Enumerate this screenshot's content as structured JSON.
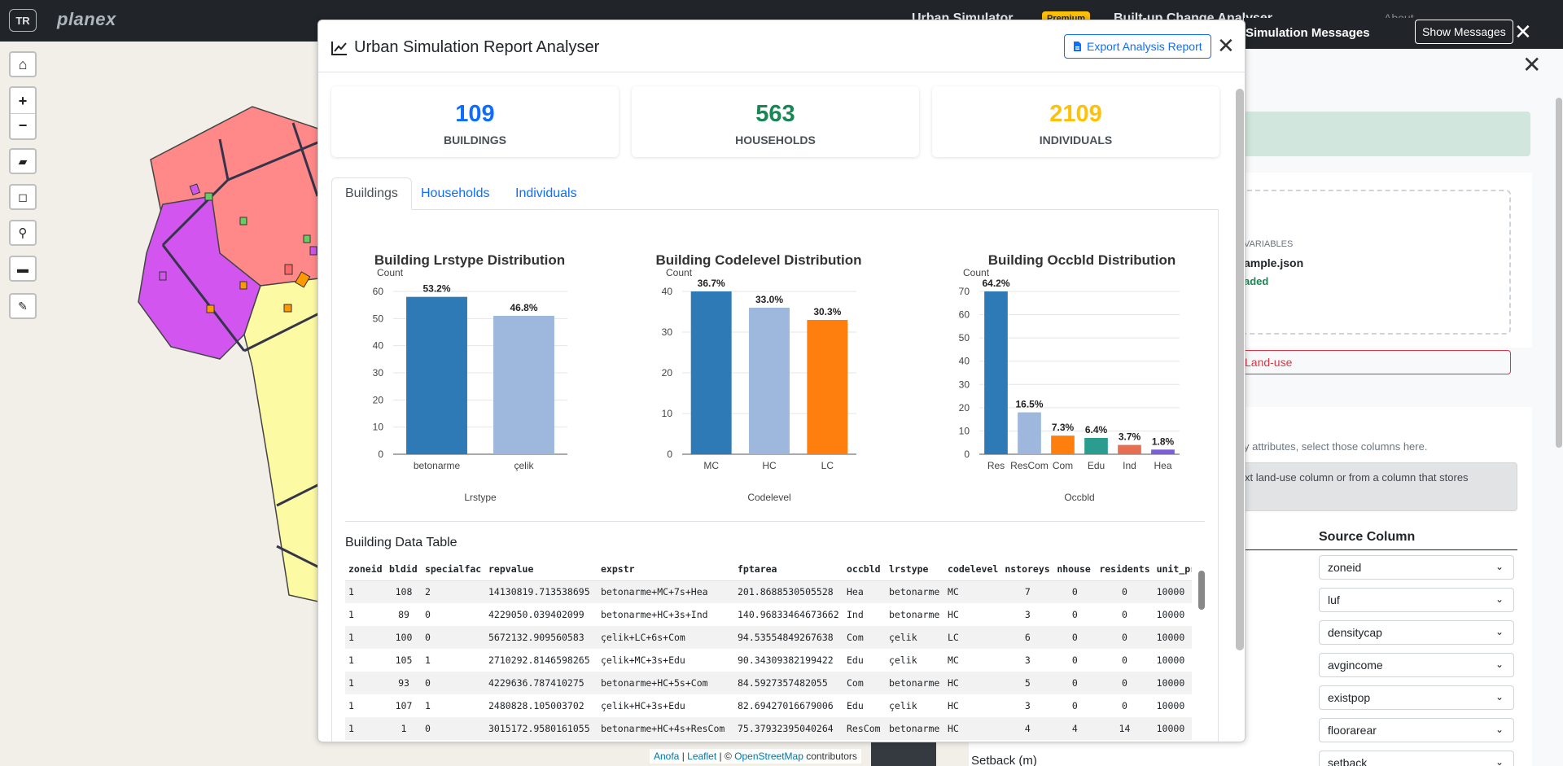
{
  "topbar": {
    "lang": "TR",
    "brand": "planex",
    "nav": {
      "urban_sim": "Urban Simulator",
      "premium": "Premium",
      "builtup": "Built-up Change Analyser",
      "about": "About"
    }
  },
  "map": {
    "controls": [
      "home-icon",
      "zoom-in-icon",
      "zoom-out-icon",
      "layers-icon",
      "draw-rectangle-icon",
      "search-icon",
      "folder-icon",
      "pencil-icon"
    ],
    "zoom_in": "+",
    "zoom_out": "−",
    "attribution": {
      "anofa": "Anofa",
      "sep1": " | ",
      "leaflet": "Leaflet",
      "sep2": " | © ",
      "osm": "OpenStreetMap",
      "suffix": " contributors"
    }
  },
  "side_panel": {
    "header_title": "Simulation Messages",
    "show_messages": "Show Messages",
    "variables_label": "VARIABLES",
    "file_name": "ample.json",
    "file_status": "aded",
    "landuse_button": "Land-use",
    "hint": "y attributes, select those columns here.",
    "info": "xt land-use column or from a column that stores",
    "source_column_header": "Source Column",
    "selects": [
      "zoneid",
      "luf",
      "densitycap",
      "avgincome",
      "existpop",
      "floorarear",
      "setback"
    ],
    "setback_label": "Setback (m)"
  },
  "modal": {
    "title": "Urban Simulation Report Analyser",
    "export_button": "Export Analysis Report",
    "stats": [
      {
        "value": "109",
        "label": "BUILDINGS",
        "color": "#0d6efd"
      },
      {
        "value": "563",
        "label": "HOUSEHOLDS",
        "color": "#198754"
      },
      {
        "value": "2109",
        "label": "INDIVIDUALS",
        "color": "#ffc107"
      }
    ],
    "tabs": [
      "Buildings",
      "Households",
      "Individuals"
    ],
    "active_tab": "Buildings",
    "table_title": "Building Data Table",
    "table": {
      "columns": [
        "zoneid",
        "bldid",
        "specialfac",
        "repvalue",
        "expstr",
        "fptarea",
        "occbld",
        "lrstype",
        "codelevel",
        "nstoreys",
        "nhouse",
        "residents",
        "unit_pr"
      ],
      "rows": [
        [
          "1",
          "108",
          "2",
          "14130819.713538695",
          "betonarme+MC+7s+Hea",
          "201.8688530505528",
          "Hea",
          "betonarme",
          "MC",
          "7",
          "0",
          "0",
          "10000"
        ],
        [
          "1",
          "89",
          "0",
          "4229050.039402099",
          "betonarme+HC+3s+Ind",
          "140.96833464673662",
          "Ind",
          "betonarme",
          "HC",
          "3",
          "0",
          "0",
          "10000"
        ],
        [
          "1",
          "100",
          "0",
          "5672132.909560583",
          "çelik+LC+6s+Com",
          "94.53554849267638",
          "Com",
          "çelik",
          "LC",
          "6",
          "0",
          "0",
          "10000"
        ],
        [
          "1",
          "105",
          "1",
          "2710292.8146598265",
          "çelik+MC+3s+Edu",
          "90.34309382199422",
          "Edu",
          "çelik",
          "MC",
          "3",
          "0",
          "0",
          "10000"
        ],
        [
          "1",
          "93",
          "0",
          "4229636.787410275",
          "betonarme+HC+5s+Com",
          "84.5927357482055",
          "Com",
          "betonarme",
          "HC",
          "5",
          "0",
          "0",
          "10000"
        ],
        [
          "1",
          "107",
          "1",
          "2480828.105003702",
          "çelik+HC+3s+Edu",
          "82.69427016679006",
          "Edu",
          "çelik",
          "HC",
          "3",
          "0",
          "0",
          "10000"
        ],
        [
          "1",
          "1",
          "0",
          "3015172.9580161055",
          "betonarme+HC+4s+ResCom",
          "75.37932395040264",
          "ResCom",
          "betonarme",
          "HC",
          "4",
          "4",
          "14",
          "10000"
        ]
      ]
    }
  },
  "chart_data": [
    {
      "type": "bar",
      "title": "Building Lrstype Distribution",
      "xlabel": "Lrstype",
      "ylabel": "Count",
      "categories": [
        "betonarme",
        "çelik"
      ],
      "values": [
        58,
        51
      ],
      "labels": [
        "53.2%",
        "46.8%"
      ],
      "colors": [
        "#2e7ab6",
        "#9db8dc"
      ],
      "ylim": [
        0,
        60
      ],
      "yticks": [
        0,
        10,
        20,
        30,
        40,
        50,
        60
      ],
      "grid": true
    },
    {
      "type": "bar",
      "title": "Building Codelevel Distribution",
      "xlabel": "Codelevel",
      "ylabel": "Count",
      "categories": [
        "MC",
        "HC",
        "LC"
      ],
      "values": [
        40,
        36,
        33
      ],
      "labels": [
        "36.7%",
        "33.0%",
        "30.3%"
      ],
      "colors": [
        "#2e7ab6",
        "#9db8dc",
        "#ff7f0e"
      ],
      "ylim": [
        0,
        40
      ],
      "yticks": [
        0,
        10,
        20,
        30,
        40
      ],
      "grid": true
    },
    {
      "type": "bar",
      "title": "Building Occbld Distribution",
      "xlabel": "Occbld",
      "ylabel": "Count",
      "categories": [
        "Res",
        "ResCom",
        "Com",
        "Edu",
        "Ind",
        "Hea"
      ],
      "values": [
        70,
        18,
        8,
        7,
        4,
        2
      ],
      "labels": [
        "64.2%",
        "16.5%",
        "7.3%",
        "6.4%",
        "3.7%",
        "1.8%"
      ],
      "colors": [
        "#2e7ab6",
        "#9db8dc",
        "#ff7f0e",
        "#2a9d8f",
        "#e76f51",
        "#7b5fd6"
      ],
      "ylim": [
        0,
        70
      ],
      "yticks": [
        0,
        10,
        20,
        30,
        40,
        50,
        60,
        70
      ],
      "grid": true
    }
  ]
}
